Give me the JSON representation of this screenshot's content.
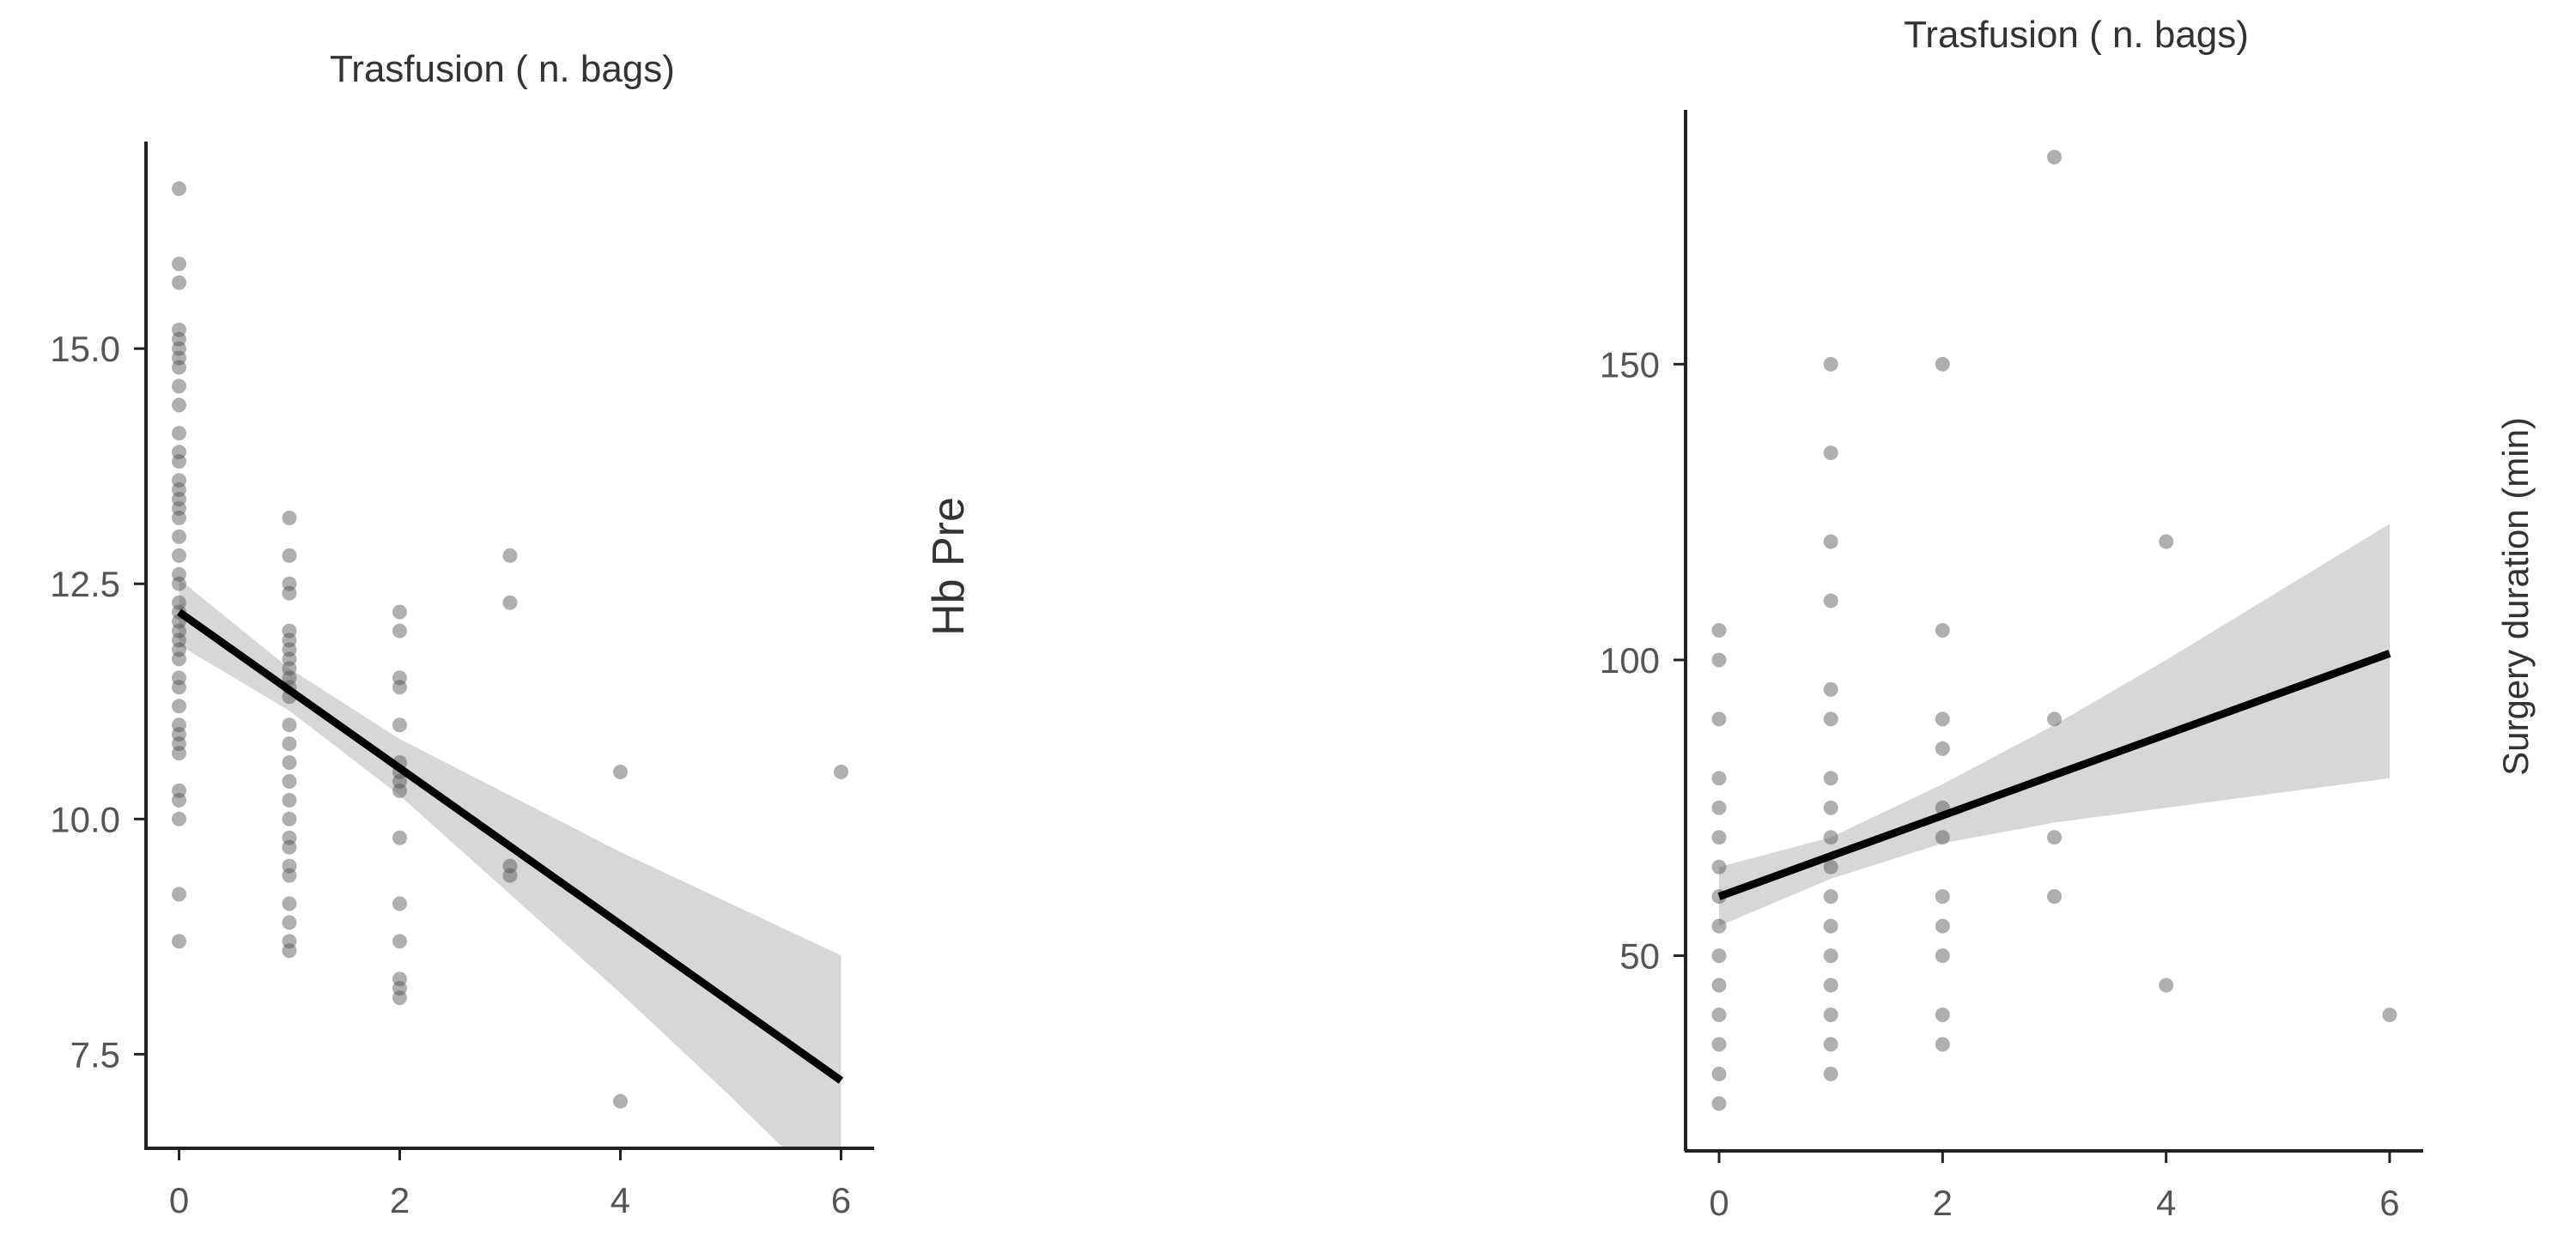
{
  "chart_data": [
    {
      "type": "scatter",
      "title": "Trasfusion ( n. bags)",
      "xlabel": "",
      "ylabel": "Hb Pre",
      "xlim": [
        -0.3,
        6.3
      ],
      "ylim": [
        6.5,
        17.2
      ],
      "xticks": [
        "0",
        "2",
        "4",
        "6"
      ],
      "yticks": [
        "7.5",
        "10.0",
        "12.5",
        "15.0"
      ],
      "grid": false,
      "legend": "none",
      "points": [
        [
          0,
          16.7
        ],
        [
          0,
          15.9
        ],
        [
          0,
          15.7
        ],
        [
          0,
          15.2
        ],
        [
          0,
          15.1
        ],
        [
          0,
          15.0
        ],
        [
          0,
          14.9
        ],
        [
          0,
          14.8
        ],
        [
          0,
          14.6
        ],
        [
          0,
          14.4
        ],
        [
          0,
          14.1
        ],
        [
          0,
          13.9
        ],
        [
          0,
          13.8
        ],
        [
          0,
          13.6
        ],
        [
          0,
          13.5
        ],
        [
          0,
          13.4
        ],
        [
          0,
          13.3
        ],
        [
          0,
          13.2
        ],
        [
          0,
          13.0
        ],
        [
          0,
          12.8
        ],
        [
          0,
          12.6
        ],
        [
          0,
          12.5
        ],
        [
          0,
          12.3
        ],
        [
          0,
          12.2
        ],
        [
          0,
          12.1
        ],
        [
          0,
          12.0
        ],
        [
          0,
          11.9
        ],
        [
          0,
          11.8
        ],
        [
          0,
          11.7
        ],
        [
          0,
          11.5
        ],
        [
          0,
          11.4
        ],
        [
          0,
          11.2
        ],
        [
          0,
          11.0
        ],
        [
          0,
          10.9
        ],
        [
          0,
          10.8
        ],
        [
          0,
          10.7
        ],
        [
          0,
          10.3
        ],
        [
          0,
          10.2
        ],
        [
          0,
          10.0
        ],
        [
          0,
          9.2
        ],
        [
          0,
          8.7
        ],
        [
          1,
          13.2
        ],
        [
          1,
          12.8
        ],
        [
          1,
          12.5
        ],
        [
          1,
          12.4
        ],
        [
          1,
          12.0
        ],
        [
          1,
          11.9
        ],
        [
          1,
          11.8
        ],
        [
          1,
          11.7
        ],
        [
          1,
          11.6
        ],
        [
          1,
          11.5
        ],
        [
          1,
          11.4
        ],
        [
          1,
          11.3
        ],
        [
          1,
          11.0
        ],
        [
          1,
          10.8
        ],
        [
          1,
          10.6
        ],
        [
          1,
          10.4
        ],
        [
          1,
          10.2
        ],
        [
          1,
          10.0
        ],
        [
          1,
          9.8
        ],
        [
          1,
          9.7
        ],
        [
          1,
          9.5
        ],
        [
          1,
          9.4
        ],
        [
          1,
          9.1
        ],
        [
          1,
          8.9
        ],
        [
          1,
          8.7
        ],
        [
          1,
          8.6
        ],
        [
          2,
          12.2
        ],
        [
          2,
          12.0
        ],
        [
          2,
          11.5
        ],
        [
          2,
          11.4
        ],
        [
          2,
          11.0
        ],
        [
          2,
          10.6
        ],
        [
          2,
          10.5
        ],
        [
          2,
          10.4
        ],
        [
          2,
          10.3
        ],
        [
          2,
          9.8
        ],
        [
          2,
          9.1
        ],
        [
          2,
          8.7
        ],
        [
          2,
          8.3
        ],
        [
          2,
          8.2
        ],
        [
          2,
          8.1
        ],
        [
          3,
          12.8
        ],
        [
          3,
          12.3
        ],
        [
          3,
          9.5
        ],
        [
          3,
          9.4
        ],
        [
          4,
          10.5
        ],
        [
          4,
          7.0
        ],
        [
          6,
          10.5
        ]
      ],
      "fit": {
        "intercept": 12.2,
        "slope": -0.83,
        "x_range": [
          0,
          6
        ]
      },
      "ci": [
        {
          "x": 0,
          "lower": 11.85,
          "upper": 12.55
        },
        {
          "x": 1,
          "lower": 11.15,
          "upper": 11.6
        },
        {
          "x": 2,
          "lower": 10.25,
          "upper": 10.85
        },
        {
          "x": 3,
          "lower": 9.2,
          "upper": 10.25
        },
        {
          "x": 4,
          "lower": 8.15,
          "upper": 9.65
        },
        {
          "x": 5,
          "lower": 7.05,
          "upper": 9.1
        },
        {
          "x": 6,
          "lower": 5.9,
          "upper": 8.55
        }
      ]
    },
    {
      "type": "scatter",
      "title": "Trasfusion ( n. bags)",
      "xlabel": "",
      "ylabel": "Surgery duration (min)",
      "xlim": [
        -0.3,
        6.3
      ],
      "ylim": [
        17,
        193
      ],
      "xticks": [
        "0",
        "2",
        "4",
        "6"
      ],
      "yticks": [
        "50",
        "100",
        "150"
      ],
      "grid": false,
      "legend": "none",
      "points": [
        [
          0,
          105
        ],
        [
          0,
          100
        ],
        [
          0,
          90
        ],
        [
          0,
          80
        ],
        [
          0,
          75
        ],
        [
          0,
          70
        ],
        [
          0,
          65
        ],
        [
          0,
          60
        ],
        [
          0,
          55
        ],
        [
          0,
          50
        ],
        [
          0,
          45
        ],
        [
          0,
          40
        ],
        [
          0,
          35
        ],
        [
          0,
          30
        ],
        [
          0,
          25
        ],
        [
          1,
          150
        ],
        [
          1,
          135
        ],
        [
          1,
          120
        ],
        [
          1,
          110
        ],
        [
          1,
          95
        ],
        [
          1,
          90
        ],
        [
          1,
          80
        ],
        [
          1,
          75
        ],
        [
          1,
          70
        ],
        [
          1,
          65
        ],
        [
          1,
          60
        ],
        [
          1,
          55
        ],
        [
          1,
          50
        ],
        [
          1,
          45
        ],
        [
          1,
          40
        ],
        [
          1,
          35
        ],
        [
          1,
          30
        ],
        [
          2,
          150
        ],
        [
          2,
          105
        ],
        [
          2,
          90
        ],
        [
          2,
          85
        ],
        [
          2,
          75
        ],
        [
          2,
          70
        ],
        [
          2,
          60
        ],
        [
          2,
          55
        ],
        [
          2,
          50
        ],
        [
          2,
          40
        ],
        [
          2,
          35
        ],
        [
          3,
          185
        ],
        [
          3,
          90
        ],
        [
          3,
          70
        ],
        [
          3,
          60
        ],
        [
          4,
          120
        ],
        [
          4,
          45
        ],
        [
          6,
          40
        ]
      ],
      "fit": {
        "intercept": 60,
        "slope": 6.85,
        "x_range": [
          0,
          6
        ]
      },
      "ci": [
        {
          "x": 0,
          "lower": 55,
          "upper": 65
        },
        {
          "x": 1,
          "lower": 63,
          "upper": 70
        },
        {
          "x": 2,
          "lower": 69,
          "upper": 79
        },
        {
          "x": 3,
          "lower": 72.5,
          "upper": 89
        },
        {
          "x": 4,
          "lower": 75,
          "upper": 100
        },
        {
          "x": 5,
          "lower": 77.5,
          "upper": 111.5
        },
        {
          "x": 6,
          "lower": 80,
          "upper": 123
        }
      ]
    }
  ]
}
